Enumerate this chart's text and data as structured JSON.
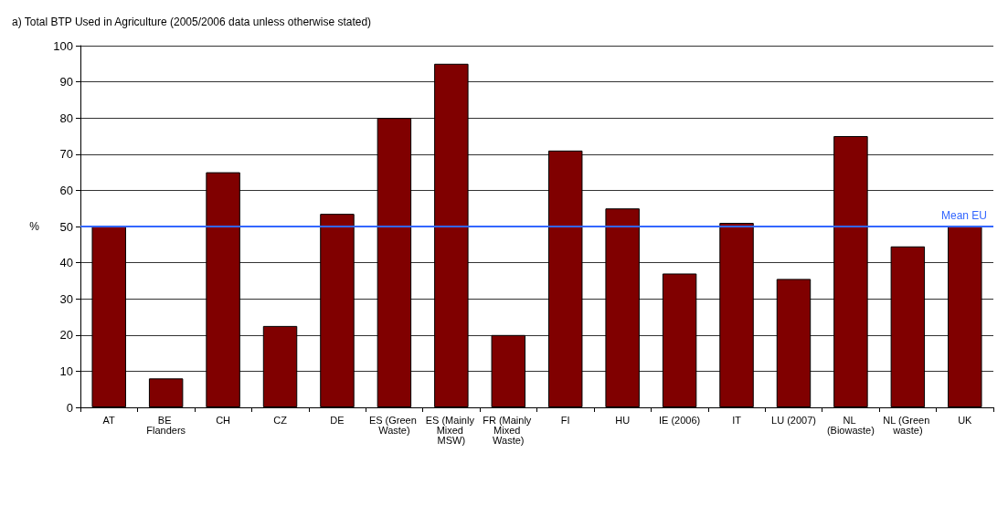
{
  "chart_data": {
    "type": "bar",
    "title": "a) Total BTP Used in Agriculture (2005/2006 data unless otherwise stated)",
    "ylabel": "%",
    "categories": [
      "AT",
      "BE Flanders",
      "CH",
      "CZ",
      "DE",
      "ES (Green Waste)",
      "ES (Mainly Mixed MSW)",
      "FR (Mainly Mixed Waste)",
      "FI",
      "HU",
      "IE (2006)",
      "IT",
      "LU (2007)",
      "NL (Biowaste)",
      "NL (Green waste)",
      "UK"
    ],
    "values": [
      50,
      8,
      65,
      22.5,
      53.5,
      80,
      95,
      20,
      71,
      55,
      37,
      51,
      35.5,
      75,
      44.5,
      50
    ],
    "color": "#800000",
    "ylim": [
      0,
      100
    ],
    "yticks": [
      0,
      10,
      20,
      30,
      40,
      50,
      60,
      70,
      80,
      90,
      100
    ],
    "grid": "y",
    "ref_lines": [
      {
        "axis": "y",
        "value": 50,
        "label": "Mean EU",
        "color": "#3366ff"
      }
    ]
  }
}
